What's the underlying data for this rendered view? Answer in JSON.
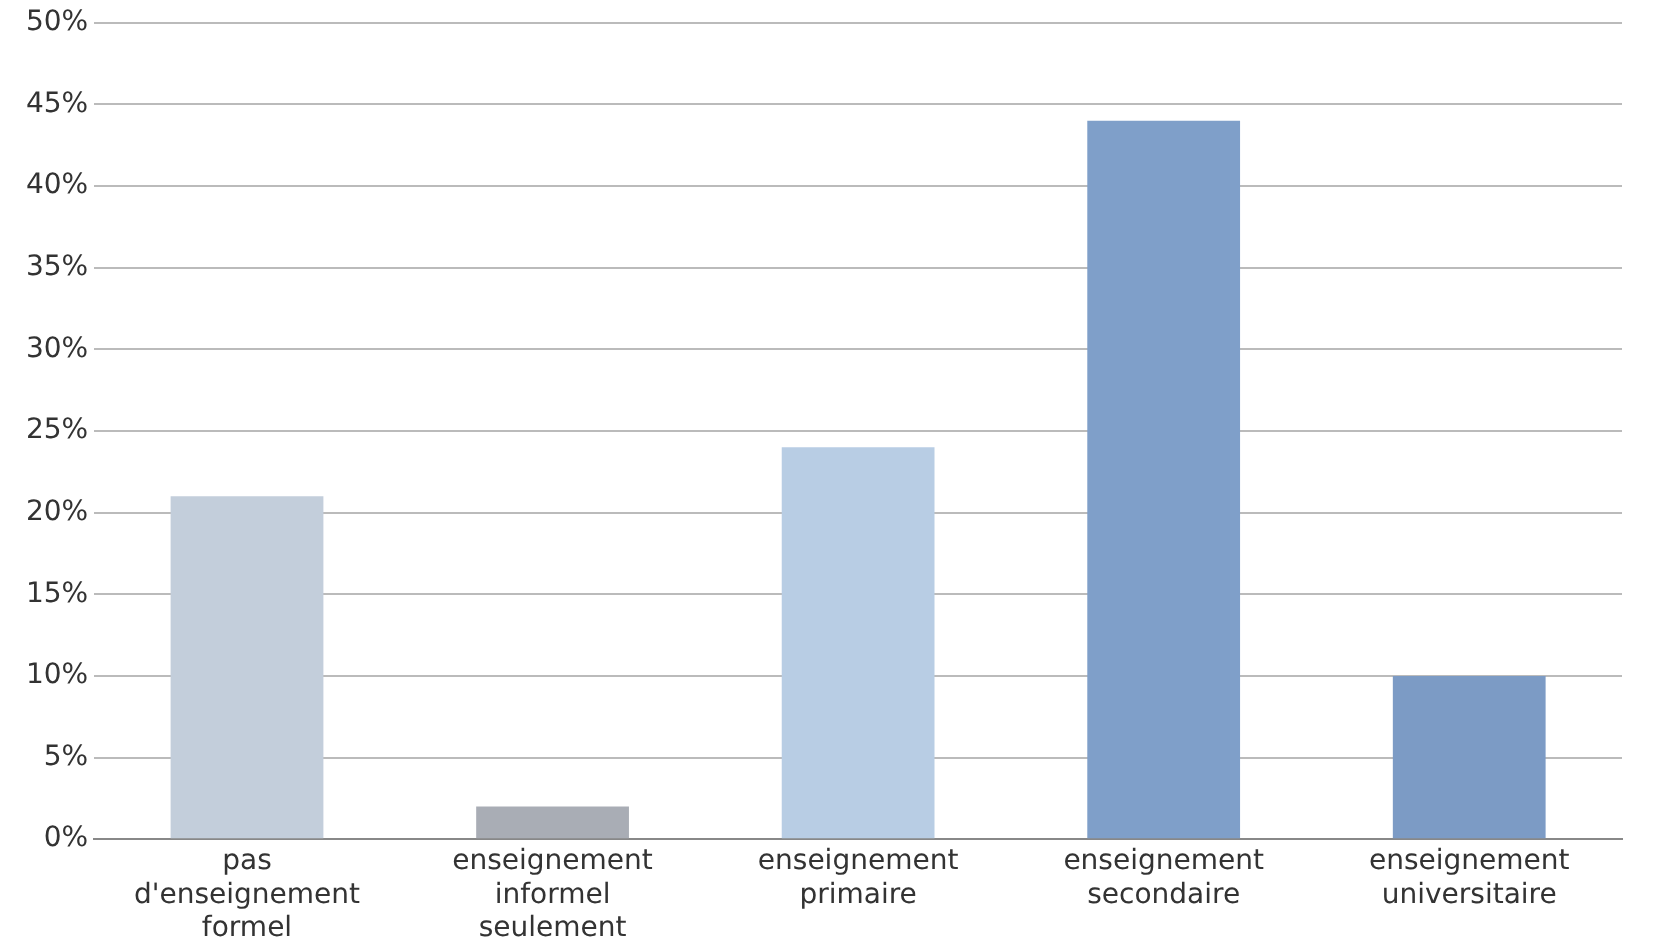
{
  "chart_data": {
    "type": "bar",
    "categories": [
      "pas d'enseignement formel",
      "enseignement informel seulement",
      "enseignement primaire",
      "enseignement secondaire",
      "enseignement universitaire"
    ],
    "values": [
      21,
      2,
      24,
      44,
      10
    ],
    "colors": [
      "#c3cedb",
      "#a9adb5",
      "#b8cde4",
      "#7f9fc9",
      "#7c9bc5"
    ],
    "ylim": [
      0,
      50
    ],
    "yticks": [
      {
        "value": 0,
        "label": "0%"
      },
      {
        "value": 5,
        "label": "5%"
      },
      {
        "value": 10,
        "label": "10%"
      },
      {
        "value": 15,
        "label": "15%"
      },
      {
        "value": 20,
        "label": "20%"
      },
      {
        "value": 25,
        "label": "25%"
      },
      {
        "value": 30,
        "label": "30%"
      },
      {
        "value": 35,
        "label": "35%"
      },
      {
        "value": 40,
        "label": "40%"
      },
      {
        "value": 45,
        "label": "45%"
      },
      {
        "value": 50,
        "label": "50%"
      }
    ],
    "grid": "y",
    "legend": false
  }
}
